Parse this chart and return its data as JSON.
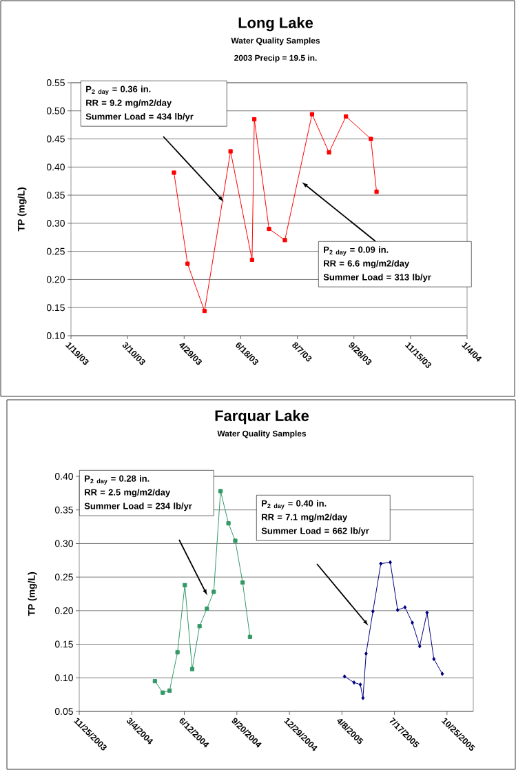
{
  "chart_data": [
    {
      "type": "line",
      "title": "Long Lake",
      "subtitle": "Water Quality Samples",
      "ylabel": "TP (mg/L)",
      "annotations": [
        "2003 Precip = 19.5 in.",
        "P$_{2 day}$ = 0.36 in.",
        "RR = 9.2 mg/m2/day",
        "Summer Load = 434 lb/yr",
        "P$_{2 day}$ = 0.09 in.",
        "RR = 6.6 mg/m2/day",
        "Summer Load = 313 lb/yr"
      ],
      "series": [
        {
          "color": "#ff0000",
          "x": [
            "2003-04-20",
            "2003-05-02",
            "2003-05-17",
            "2003-06-09",
            "2003-06-28",
            "2003-06-30",
            "2003-07-13",
            "2003-07-27",
            "2003-08-20",
            "2003-09-04",
            "2003-09-19",
            "2003-10-11",
            "2003-10-16"
          ],
          "values": [
            0.39,
            0.228,
            0.144,
            0.428,
            0.235,
            0.485,
            0.29,
            0.27,
            0.494,
            0.426,
            0.49,
            0.45,
            0.356
          ]
        }
      ],
      "marker": "square",
      "grid": "y",
      "xlim": [
        "2003-01-19",
        "2004-01-04"
      ],
      "xticks": [
        {
          "value": "2003-01-19",
          "label": "1/19/03"
        },
        {
          "value": "2003-03-10",
          "label": "3/10/03"
        },
        {
          "value": "2003-04-29",
          "label": "4/29/03"
        },
        {
          "value": "2003-06-18",
          "label": "6/18/03"
        },
        {
          "value": "2003-08-07",
          "label": "8/7/03"
        },
        {
          "value": "2003-09-26",
          "label": "9/26/03"
        },
        {
          "value": "2003-11-15",
          "label": "11/15/03"
        },
        {
          "value": "2004-01-04",
          "label": "1/4/04"
        }
      ],
      "ylim": [
        0.1,
        0.55
      ],
      "yticks": [
        {
          "value": 0.1,
          "label": "0.10"
        },
        {
          "value": 0.15,
          "label": "0.15"
        },
        {
          "value": 0.2,
          "label": "0.20"
        },
        {
          "value": 0.25,
          "label": "0.25"
        },
        {
          "value": 0.3,
          "label": "0.30"
        },
        {
          "value": 0.35,
          "label": "0.35"
        },
        {
          "value": 0.4,
          "label": "0.40"
        },
        {
          "value": 0.45,
          "label": "0.45"
        },
        {
          "value": 0.5,
          "label": "0.50"
        },
        {
          "value": 0.55,
          "label": "0.55"
        }
      ]
    },
    {
      "type": "line",
      "title": "Farquar Lake",
      "subtitle": "Water Quality Samples",
      "ylabel": "TP (mg/L)",
      "annotations": [
        "P$_{2 day}$ = 0.28 in.",
        "RR = 2.5 mg/m2/day",
        "Summer Load = 234 lb/yr",
        "P$_{2 day}$ = 0.40 in.",
        "RR = 7.1 mg/m2/day",
        "Summer Load = 662 lb/yr"
      ],
      "series": [
        {
          "color": "#339966",
          "marker": "square",
          "x": [
            "2004-04-17",
            "2004-05-02",
            "2004-05-15",
            "2004-05-30",
            "2004-06-13",
            "2004-06-27",
            "2004-07-11",
            "2004-07-25",
            "2004-08-07",
            "2004-08-20",
            "2004-09-04",
            "2004-09-17",
            "2004-10-01",
            "2004-10-15"
          ],
          "values": [
            0.095,
            0.078,
            0.081,
            0.138,
            0.238,
            0.113,
            0.177,
            0.203,
            0.228,
            0.378,
            0.33,
            0.304,
            0.242,
            0.161
          ]
        },
        {
          "color": "#000080",
          "marker": "diamond",
          "x": [
            "2005-04-13",
            "2005-05-01",
            "2005-05-13",
            "2005-05-18",
            "2005-05-24",
            "2005-06-06",
            "2005-06-21",
            "2005-07-09",
            "2005-07-23",
            "2005-08-06",
            "2005-08-20",
            "2005-09-03",
            "2005-09-17",
            "2005-09-30",
            "2005-10-16"
          ],
          "values": [
            0.102,
            0.093,
            0.09,
            0.07,
            0.136,
            0.199,
            0.27,
            0.272,
            0.201,
            0.205,
            0.182,
            0.147,
            0.197,
            0.128,
            0.106
          ]
        }
      ],
      "grid": "y",
      "xlim": [
        "2003-11-25",
        "2005-12-14"
      ],
      "xticks": [
        {
          "value": "2003-11-25",
          "label": "11/25/2003"
        },
        {
          "value": "2004-03-04",
          "label": "3/4/2004"
        },
        {
          "value": "2004-06-12",
          "label": "6/12/2004"
        },
        {
          "value": "2004-09-20",
          "label": "9/20/2004"
        },
        {
          "value": "2004-12-29",
          "label": "12/29/2004"
        },
        {
          "value": "2005-04-08",
          "label": "4/8/2005"
        },
        {
          "value": "2005-07-17",
          "label": "7/17/2005"
        },
        {
          "value": "2005-10-25",
          "label": "10/25/2005"
        }
      ],
      "ylim": [
        0.05,
        0.4
      ],
      "yticks": [
        {
          "value": 0.05,
          "label": "0.05"
        },
        {
          "value": 0.1,
          "label": "0.10"
        },
        {
          "value": 0.15,
          "label": "0.15"
        },
        {
          "value": 0.2,
          "label": "0.20"
        },
        {
          "value": 0.25,
          "label": "0.25"
        },
        {
          "value": 0.3,
          "label": "0.30"
        },
        {
          "value": 0.35,
          "label": "0.35"
        },
        {
          "value": 0.4,
          "label": "0.40"
        }
      ]
    }
  ]
}
